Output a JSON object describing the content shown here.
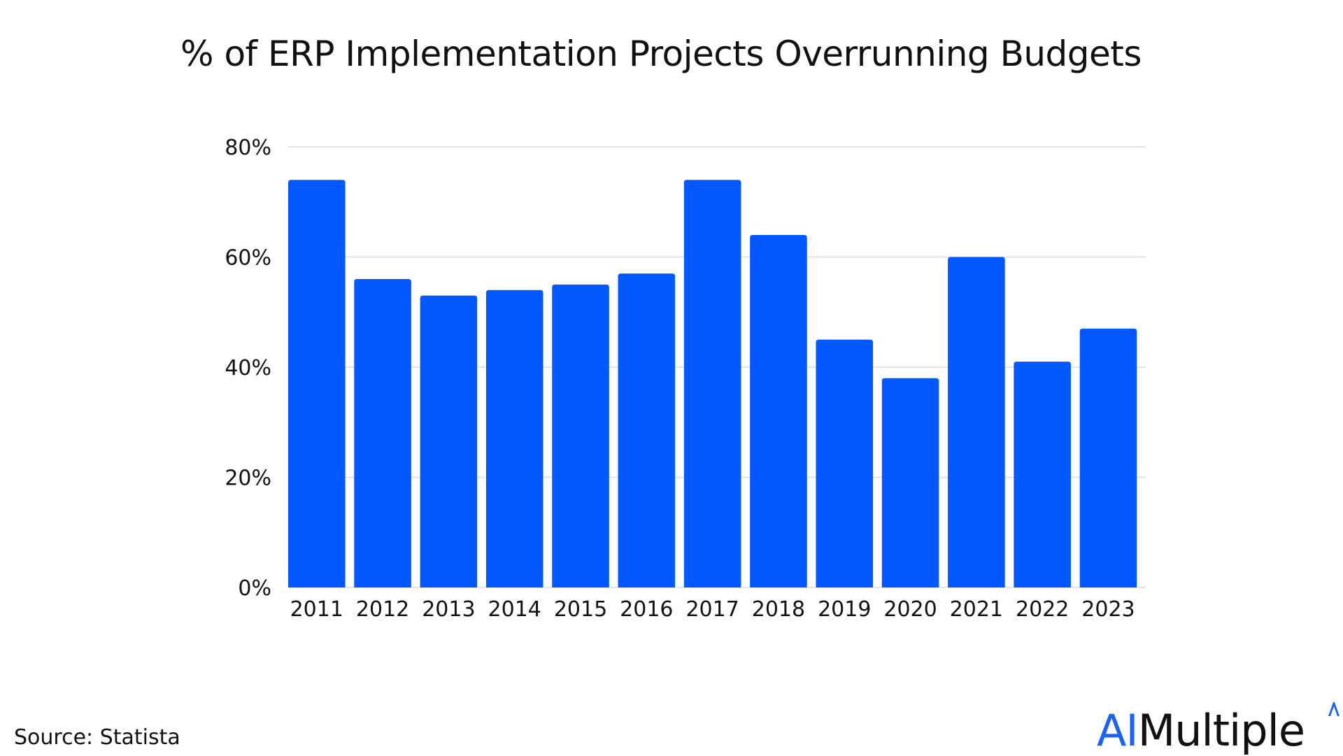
{
  "chart_data": {
    "type": "bar",
    "title": "% of ERP Implementation Projects Overrunning Budgets",
    "categories": [
      "2011",
      "2012",
      "2013",
      "2014",
      "2015",
      "2016",
      "2017",
      "2018",
      "2019",
      "2020",
      "2021",
      "2022",
      "2023"
    ],
    "values": [
      74,
      56,
      53,
      54,
      55,
      57,
      74,
      64,
      45,
      38,
      60,
      41,
      47
    ],
    "xlabel": "",
    "ylabel": "",
    "ylim": [
      0,
      80
    ],
    "yticks": [
      0,
      20,
      40,
      60,
      80
    ],
    "ytick_labels": [
      "0%",
      "20%",
      "40%",
      "60%",
      "80%"
    ],
    "grid": true,
    "bar_color": "#0459fe"
  },
  "footer": {
    "source": "Source:  Statista"
  },
  "logo": {
    "ai": "AI",
    "rest": "Multiple",
    "ai_color": "#1e63f0"
  }
}
